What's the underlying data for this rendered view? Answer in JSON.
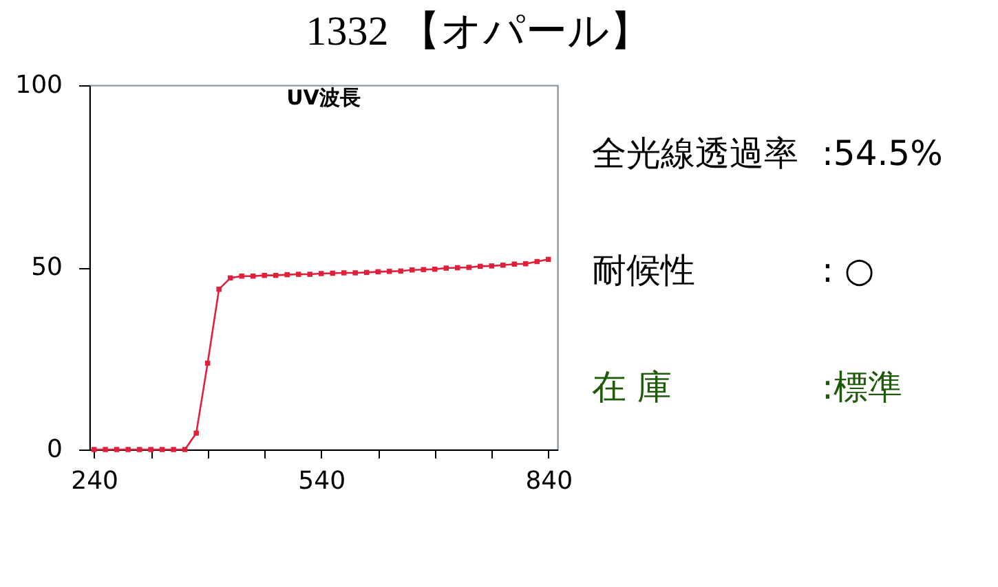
{
  "chart_data": [
    {
      "type": "line",
      "title": "1332 【オパール】",
      "subtitle": "UV波長",
      "x": [
        240,
        255,
        270,
        285,
        300,
        315,
        330,
        345,
        360,
        375,
        390,
        405,
        420,
        435,
        450,
        465,
        480,
        495,
        510,
        525,
        540,
        555,
        570,
        585,
        600,
        615,
        630,
        645,
        660,
        675,
        690,
        705,
        720,
        735,
        750,
        765,
        780,
        795,
        810,
        825,
        840
      ],
      "series": [
        {
          "color": "#e0203a",
          "values": [
            0,
            0,
            0,
            0,
            0,
            0,
            0,
            0,
            0,
            4.5,
            23.7,
            44,
            47.1,
            47.6,
            47.6,
            47.8,
            47.8,
            48,
            48.1,
            48.1,
            48.3,
            48.4,
            48.5,
            48.5,
            48.6,
            48.8,
            48.9,
            49,
            49.3,
            49.4,
            49.5,
            49.8,
            49.9,
            50,
            50.3,
            50.4,
            50.6,
            50.9,
            51,
            51.6,
            52.2
          ]
        }
      ],
      "xlim": [
        234,
        852
      ],
      "ylim": [
        0,
        100
      ],
      "xticks": [
        240,
        {
          "value": 315,
          "label": null
        },
        {
          "value": 390,
          "label": null
        },
        {
          "value": 465,
          "label": null
        },
        540,
        {
          "value": 615,
          "label": null
        },
        {
          "value": 690,
          "label": null
        },
        {
          "value": 765,
          "label": null
        },
        840
      ],
      "yticks": [
        0,
        50,
        100
      ],
      "grid": false,
      "marker": "square",
      "line_style": "solid"
    },
    {
      "type": "other",
      "annotations": [
        "全光線透過率",
        ":54.5%",
        "耐候性",
        ":  ○",
        "在 庫",
        ":標準"
      ],
      "colors": [
        "#000000",
        "#000000",
        "#000000",
        "#000000",
        "#1e5a0a",
        "#1e5a0a"
      ]
    }
  ]
}
